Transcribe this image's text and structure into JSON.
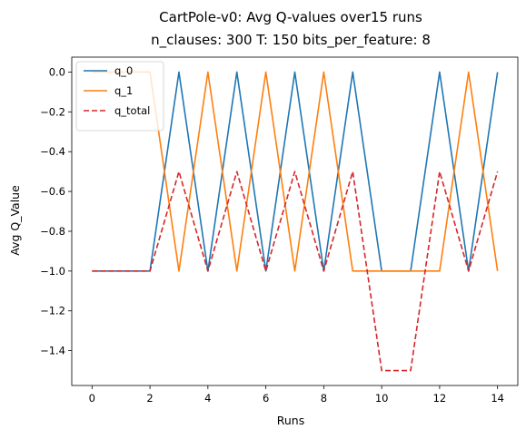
{
  "chart_data": {
    "type": "line",
    "suptitle": "CartPole-v0: Avg Q-values over15 runs",
    "title": "n_clauses: 300 T: 150 bits_per_feature: 8",
    "xlabel": "Runs",
    "ylabel": "Avg Q_Value",
    "xlim": [
      -0.7,
      14.7
    ],
    "ylim": [
      -1.575,
      0.075
    ],
    "xticks": [
      0,
      2,
      4,
      6,
      8,
      10,
      12,
      14
    ],
    "xtick_labels": [
      "0",
      "2",
      "4",
      "6",
      "8",
      "10",
      "12",
      "14"
    ],
    "yticks": [
      0.0,
      -0.2,
      -0.4,
      -0.6,
      -0.8,
      -1.0,
      -1.2,
      -1.4
    ],
    "ytick_labels": [
      "0.0",
      "−0.2",
      "−0.4",
      "−0.6",
      "−0.8",
      "−1.0",
      "−1.2",
      "−1.4"
    ],
    "grid": false,
    "legend_position": "upper-left",
    "x": [
      0,
      1,
      2,
      3,
      4,
      5,
      6,
      7,
      8,
      9,
      10,
      11,
      12,
      13,
      14
    ],
    "series": [
      {
        "name": "q_0",
        "color": "#1f77b4",
        "dash": "solid",
        "values": [
          -1,
          -1,
          -1,
          0,
          -1,
          0,
          -1,
          0,
          -1,
          0,
          -1,
          -1,
          0,
          -1,
          0
        ]
      },
      {
        "name": "q_1",
        "color": "#ff7f0e",
        "dash": "solid",
        "values": [
          0,
          0,
          0,
          -1,
          0,
          -1,
          0,
          -1,
          0,
          -1,
          -1,
          -1,
          -1,
          0,
          -1
        ]
      },
      {
        "name": "q_total",
        "color": "#d62728",
        "dash": "dashed",
        "values": [
          -1,
          -1,
          -1,
          -0.5,
          -1,
          -0.5,
          -1,
          -0.5,
          -1,
          -0.5,
          -1.5,
          -1.5,
          -0.5,
          -1,
          -0.5
        ]
      }
    ]
  }
}
